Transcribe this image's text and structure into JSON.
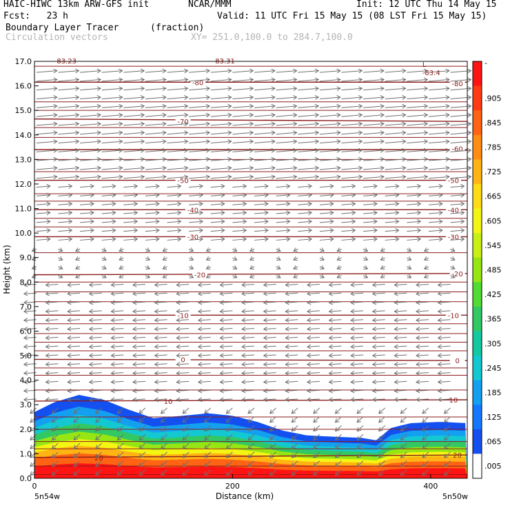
{
  "header": {
    "line1_left": "HAIC-HIWC 13km ARW-GFS init",
    "line1_center": "NCAR/MMM",
    "line1_right": "Init: 12 UTC Thu 14 May 15",
    "line2_left": "Fcst:   23 h",
    "line2_right": "Valid: 11 UTC Fri 15 May 15 (08 LST Fri 15 May 15)",
    "line3_left": "Boundary Layer Tracer",
    "line3_center": "(fraction)",
    "line4_left": "Circulation vectors",
    "line4_center": "XY= 251.0,100.0 to 284.7,100.0"
  },
  "chart_data": {
    "type": "heatmap",
    "xlabel": "Distance (km)",
    "ylabel": "Height (km)",
    "xlim": [
      0,
      437
    ],
    "ylim": [
      0,
      17
    ],
    "x_ticks": [
      "0",
      "200",
      "400"
    ],
    "x_tick_values": [
      0,
      200,
      400
    ],
    "y_ticks": [
      "0.0",
      "1.0",
      "2.0",
      "3.0",
      "4.0",
      "5.0",
      "6.0",
      "7.0",
      "8.0",
      "9.0",
      "10.0",
      "11.0",
      "12.0",
      "13.0",
      "14.0",
      "15.0",
      "16.0",
      "17.0"
    ],
    "y_tick_values": [
      0,
      1,
      2,
      3,
      4,
      5,
      6,
      7,
      8,
      9,
      10,
      11,
      12,
      13,
      14,
      15,
      16,
      17
    ],
    "endpoints": {
      "left": "5n54w",
      "right": "5n50w"
    },
    "colorbar": {
      "labels": [
        "-",
        ".905",
        ".845",
        ".785",
        ".725",
        ".665",
        ".605",
        ".545",
        ".485",
        ".425",
        ".365",
        ".305",
        ".245",
        ".185",
        ".125",
        ".065",
        ".005"
      ],
      "colors": [
        "#ff1414",
        "#ff3b14",
        "#ff6414",
        "#ff8c14",
        "#ffb414",
        "#ffdc14",
        "#f5f514",
        "#c8f014",
        "#96e614",
        "#50dc32",
        "#32c864",
        "#14c8a0",
        "#14c8d2",
        "#14a0f0",
        "#1478ff",
        "#1450f0",
        "#ffffff"
      ]
    },
    "tracer_top_km": [
      {
        "x": 0,
        "y": 2.7
      },
      {
        "x": 20,
        "y": 3.1
      },
      {
        "x": 45,
        "y": 3.4
      },
      {
        "x": 70,
        "y": 3.2
      },
      {
        "x": 95,
        "y": 2.8
      },
      {
        "x": 120,
        "y": 2.45
      },
      {
        "x": 150,
        "y": 2.55
      },
      {
        "x": 175,
        "y": 2.65
      },
      {
        "x": 200,
        "y": 2.55
      },
      {
        "x": 225,
        "y": 2.3
      },
      {
        "x": 250,
        "y": 1.95
      },
      {
        "x": 275,
        "y": 1.75
      },
      {
        "x": 300,
        "y": 1.7
      },
      {
        "x": 330,
        "y": 1.65
      },
      {
        "x": 345,
        "y": 1.55
      },
      {
        "x": 360,
        "y": 2.05
      },
      {
        "x": 380,
        "y": 2.25
      },
      {
        "x": 410,
        "y": 2.3
      },
      {
        "x": 437,
        "y": 2.25
      }
    ],
    "tracer_bands": [
      {
        "color": "#1450f0",
        "depth_frac": 1.0
      },
      {
        "color": "#14a0f0",
        "depth_frac": 0.86
      },
      {
        "color": "#14c8d2",
        "depth_frac": 0.76
      },
      {
        "color": "#32c864",
        "depth_frac": 0.66
      },
      {
        "color": "#96e614",
        "depth_frac": 0.56
      },
      {
        "color": "#f5f514",
        "depth_frac": 0.47
      },
      {
        "color": "#ffb414",
        "depth_frac": 0.39
      },
      {
        "color": "#ff6414",
        "depth_frac": 0.3
      },
      {
        "color": "#ff1414",
        "depth_frac": 0.18
      }
    ],
    "temperature_contours": [
      {
        "value": "-80",
        "y_left": 16.15,
        "y_right": 16.15,
        "labels": [
          {
            "x": 165,
            "y": 16.15
          },
          {
            "x": 427,
            "y": 16.1
          }
        ]
      },
      {
        "value": "-70",
        "y_left": 14.65,
        "y_right": 14.55,
        "labels": [
          {
            "x": 150,
            "y": 14.55
          }
        ]
      },
      {
        "value": "-60",
        "y_left": 13.4,
        "y_right": 13.4,
        "labels": [
          {
            "x": 427,
            "y": 13.45
          }
        ]
      },
      {
        "value": "-50",
        "y_left": 12.15,
        "y_right": 12.15,
        "labels": [
          {
            "x": 150,
            "y": 12.15
          },
          {
            "x": 423,
            "y": 12.15
          }
        ]
      },
      {
        "value": "-40",
        "y_left": 10.95,
        "y_right": 10.95,
        "labels": [
          {
            "x": 160,
            "y": 10.95
          },
          {
            "x": 423,
            "y": 10.95
          }
        ]
      },
      {
        "value": "-30",
        "y_left": 9.85,
        "y_right": 9.85,
        "labels": [
          {
            "x": 160,
            "y": 9.85
          },
          {
            "x": 423,
            "y": 9.85
          }
        ]
      },
      {
        "value": "-20",
        "y_left": 8.3,
        "y_right": 8.35,
        "labels": [
          {
            "x": 167,
            "y": 8.3
          },
          {
            "x": 427,
            "y": 8.35
          }
        ]
      },
      {
        "value": "-10",
        "y_left": 6.65,
        "y_right": 6.65,
        "labels": [
          {
            "x": 150,
            "y": 6.65
          },
          {
            "x": 423,
            "y": 6.65
          }
        ]
      },
      {
        "value": "0",
        "y_left": 4.85,
        "y_right": 4.8,
        "labels": [
          {
            "x": 150,
            "y": 4.85
          },
          {
            "x": 427,
            "y": 4.8
          }
        ]
      },
      {
        "value": "10",
        "y_left": 3.15,
        "y_right": 3.2,
        "labels": [
          {
            "x": 135,
            "y": 3.15
          },
          {
            "x": 423,
            "y": 3.2
          }
        ]
      },
      {
        "value": "20",
        "y_left": 0.85,
        "y_right": 0.95,
        "labels": [
          {
            "x": 65,
            "y": 0.85
          },
          {
            "x": 427,
            "y": 0.95
          }
        ]
      }
    ],
    "extra_contour_levels_km": [
      17.0,
      16.8,
      15.35,
      15.0,
      14.3,
      13.9,
      13.0,
      12.5,
      11.6,
      11.3,
      10.6,
      10.25,
      9.2,
      8.0,
      7.6,
      7.2,
      6.3,
      5.9,
      5.55,
      5.2,
      4.5,
      4.2,
      3.6,
      2.5,
      2.0,
      1.5,
      1.2,
      0.5,
      0.15
    ],
    "min_annotation": {
      "label": "L",
      "value": "-83.4",
      "x": 400,
      "y": 16.95
    },
    "top_edge_labels": [
      "-83.23",
      "-83.31"
    ],
    "wind_regimes": [
      {
        "y_from": 12.0,
        "y_to": 17.0,
        "direction": "eastward",
        "speed": "strong"
      },
      {
        "y_from": 9.5,
        "y_to": 12.0,
        "direction": "eastward",
        "speed": "moderate"
      },
      {
        "y_from": 8.0,
        "y_to": 9.5,
        "direction": "variable",
        "speed": "weak"
      },
      {
        "y_from": 0.0,
        "y_to": 8.0,
        "direction": "westward",
        "speed": "moderate"
      }
    ]
  }
}
